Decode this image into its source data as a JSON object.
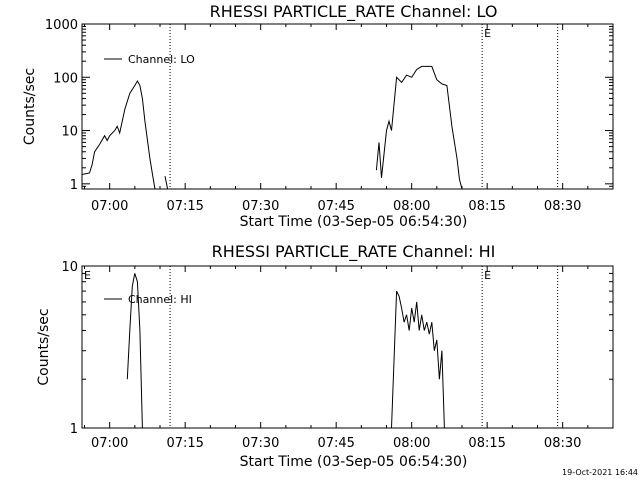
{
  "chart_data": [
    {
      "type": "line",
      "title": "RHESSI PARTICLE_RATE Channel: LO",
      "xlabel": "Start Time (03-Sep-05 06:54:30)",
      "ylabel": "Counts/sec",
      "y_scale": "log",
      "xlim": [
        "06:54:30",
        "08:40:00"
      ],
      "ylim": [
        0.8,
        1000
      ],
      "x_ticks": [
        "07:00",
        "07:15",
        "07:30",
        "07:45",
        "08:00",
        "08:15",
        "08:30"
      ],
      "y_ticks": [
        "1",
        "10",
        "100",
        "1000"
      ],
      "legend": {
        "position": "top-left",
        "entries": [
          "Channel: LO"
        ]
      },
      "dotted_lines": [
        "07:12:00",
        "08:14:00",
        "08:29:00"
      ],
      "markers": [
        {
          "text": "E",
          "x": "08:14:00"
        }
      ],
      "series": [
        {
          "name": "Channel: LO",
          "segments": [
            [
              [
                "06:54:30",
                1.5
              ],
              [
                "06:56:00",
                1.6
              ],
              [
                "06:56:30",
                2.3
              ],
              [
                "06:57:00",
                4.0
              ],
              [
                "06:58:00",
                5.5
              ],
              [
                "06:59:00",
                8.0
              ],
              [
                "06:59:30",
                6.5
              ],
              [
                "07:00:00",
                8.0
              ],
              [
                "07:01:00",
                10.0
              ],
              [
                "07:01:30",
                12.0
              ],
              [
                "07:02:00",
                9.0
              ],
              [
                "07:03:00",
                25.0
              ],
              [
                "07:04:00",
                50.0
              ],
              [
                "07:05:00",
                70.0
              ],
              [
                "07:05:30",
                85.0
              ],
              [
                "07:06:00",
                70.0
              ],
              [
                "07:06:30",
                40.0
              ],
              [
                "07:07:00",
                15.0
              ],
              [
                "07:08:00",
                3.0
              ],
              [
                "07:08:30",
                1.5
              ],
              [
                "07:09:00",
                0.8
              ]
            ],
            [
              [
                "07:11:00",
                1.4
              ],
              [
                "07:11:30",
                0.8
              ]
            ],
            [
              [
                "07:53:00",
                1.8
              ],
              [
                "07:53:30",
                6.0
              ],
              [
                "07:54:00",
                1.3
              ],
              [
                "07:55:00",
                10.0
              ],
              [
                "07:55:30",
                15.0
              ],
              [
                "07:56:00",
                10.0
              ],
              [
                "07:57:00",
                100.0
              ],
              [
                "07:58:00",
                80.0
              ],
              [
                "07:59:00",
                110.0
              ],
              [
                "08:00:00",
                100.0
              ],
              [
                "08:01:00",
                140.0
              ],
              [
                "08:02:00",
                160.0
              ],
              [
                "08:04:00",
                160.0
              ],
              [
                "08:05:00",
                90.0
              ],
              [
                "08:06:00",
                75.0
              ],
              [
                "08:07:00",
                70.0
              ],
              [
                "08:08:00",
                12.0
              ],
              [
                "08:09:00",
                3.0
              ],
              [
                "08:09:30",
                1.2
              ],
              [
                "08:10:00",
                0.8
              ]
            ]
          ]
        }
      ]
    },
    {
      "type": "line",
      "title": "RHESSI PARTICLE_RATE Channel: HI",
      "xlabel": "Start Time (03-Sep-05 06:54:30)",
      "ylabel": "Counts/sec",
      "y_scale": "log",
      "xlim": [
        "06:54:30",
        "08:40:00"
      ],
      "ylim": [
        1,
        10
      ],
      "x_ticks": [
        "07:00",
        "07:15",
        "07:30",
        "07:45",
        "08:00",
        "08:15",
        "08:30"
      ],
      "y_ticks": [
        "1",
        "10"
      ],
      "legend": {
        "position": "top-left",
        "entries": [
          "Channel: HI"
        ]
      },
      "dotted_lines": [
        "07:12:00",
        "08:14:00",
        "08:29:00"
      ],
      "markers": [
        {
          "text": "E",
          "x": "06:55:00"
        },
        {
          "text": "E",
          "x": "08:14:00"
        }
      ],
      "series": [
        {
          "name": "Channel: HI",
          "segments": [
            [
              [
                "07:03:30",
                2.0
              ],
              [
                "07:04:00",
                4.0
              ],
              [
                "07:04:30",
                7.5
              ],
              [
                "07:05:00",
                9.0
              ],
              [
                "07:05:30",
                8.0
              ],
              [
                "07:06:00",
                4.0
              ],
              [
                "07:06:30",
                1.0
              ]
            ],
            [
              [
                "07:56:00",
                1.0
              ],
              [
                "07:57:00",
                7.0
              ],
              [
                "07:57:30",
                6.5
              ],
              [
                "07:58:00",
                5.5
              ],
              [
                "07:58:30",
                4.5
              ],
              [
                "07:59:00",
                5.0
              ],
              [
                "07:59:30",
                4.0
              ],
              [
                "08:00:00",
                5.5
              ],
              [
                "08:00:30",
                4.5
              ],
              [
                "08:01:00",
                6.0
              ],
              [
                "08:01:30",
                4.0
              ],
              [
                "08:02:00",
                5.0
              ],
              [
                "08:02:30",
                4.0
              ],
              [
                "08:03:00",
                4.5
              ],
              [
                "08:03:30",
                3.8
              ],
              [
                "08:04:00",
                4.5
              ],
              [
                "08:04:30",
                3.0
              ],
              [
                "08:05:00",
                3.5
              ],
              [
                "08:05:30",
                2.0
              ],
              [
                "08:06:00",
                3.0
              ],
              [
                "08:06:30",
                1.0
              ]
            ]
          ]
        }
      ]
    }
  ],
  "footer": {
    "timestamp": "19-Oct-2021 16:44"
  }
}
